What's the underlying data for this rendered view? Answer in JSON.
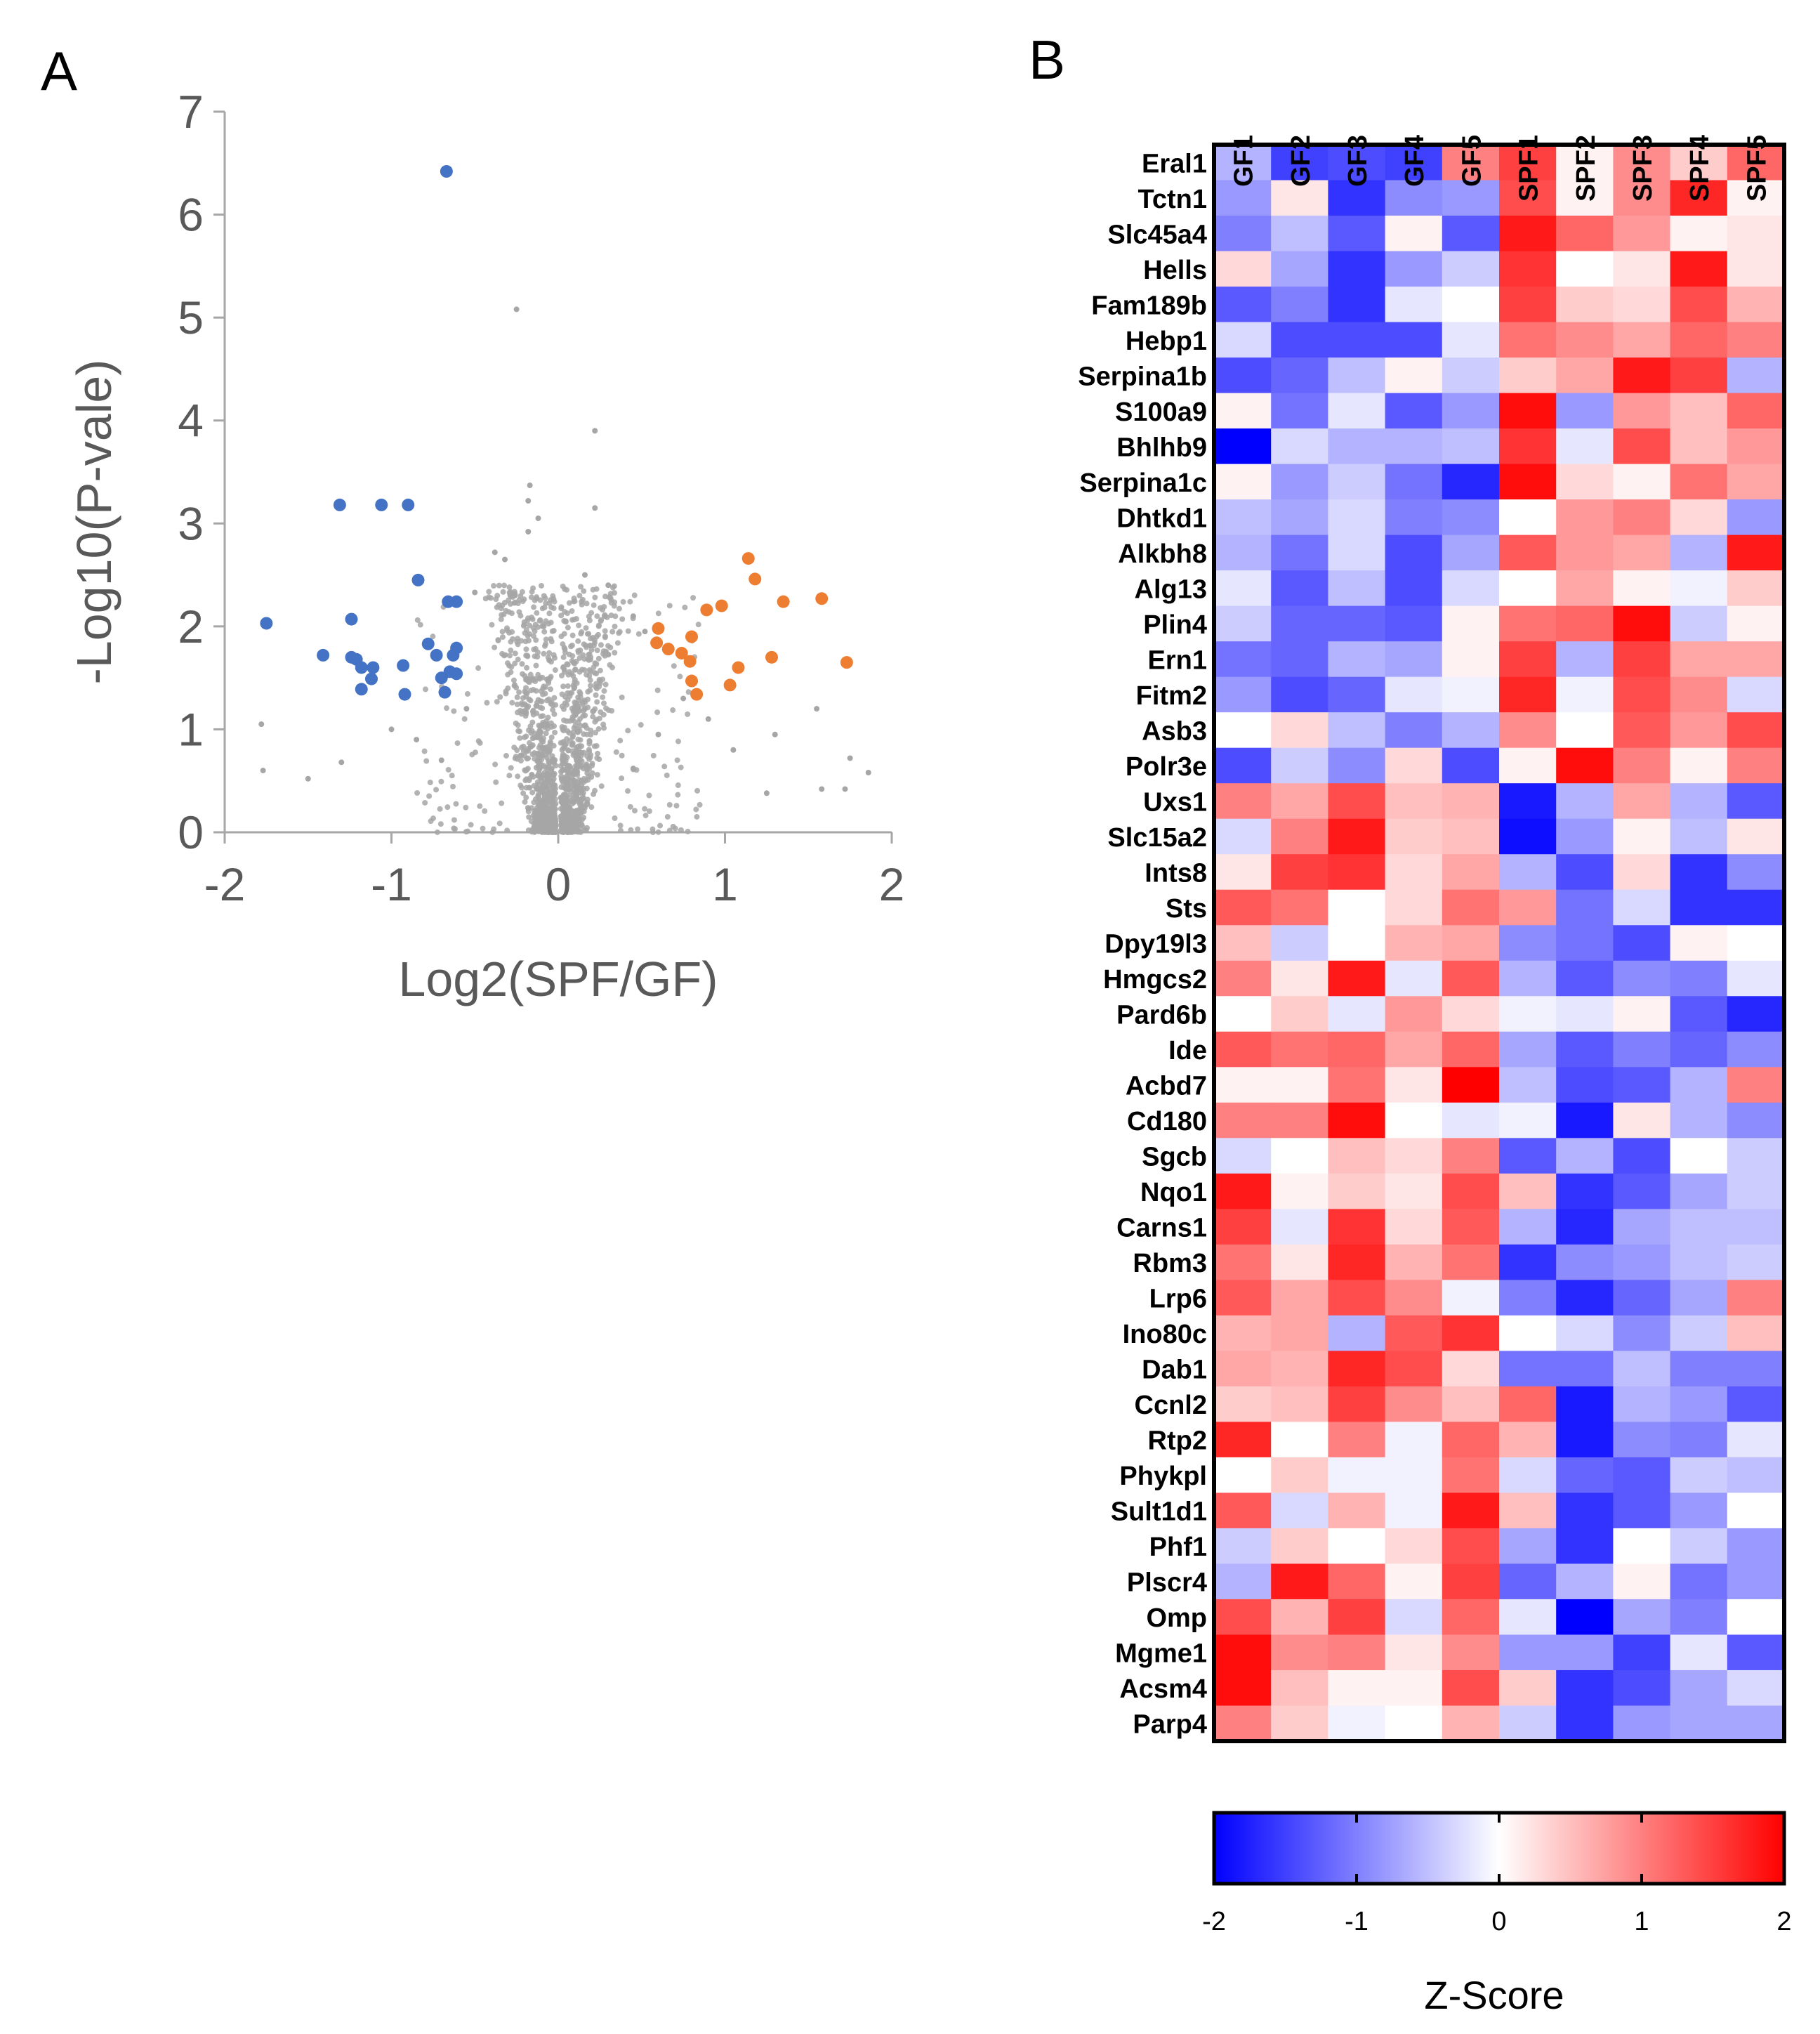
{
  "panels": {
    "left_letter": "A",
    "right_letter": "B"
  },
  "colors": {
    "background_points": "#a6a6a6",
    "down_regulated": "#4472c4",
    "up_regulated": "#ed7d31",
    "axis": "#a6a6a6",
    "text": "#595959",
    "heat_low": "#0000ff",
    "heat_mid": "#ffffff",
    "heat_high": "#ff0000"
  },
  "chart_data": [
    {
      "type": "scatter",
      "name": "volcano",
      "title": "",
      "xlabel": "Log2(SPF/GF)",
      "ylabel": "-Log10(P-vale)",
      "xlim": [
        -2,
        2
      ],
      "ylim": [
        0,
        7
      ],
      "xticks": [
        "-2",
        "-1",
        "0",
        "1",
        "2"
      ],
      "yticks": [
        "0",
        "1",
        "2",
        "3",
        "4",
        "5",
        "6",
        "7"
      ],
      "series": [
        {
          "name": "down",
          "color": "#4472c4",
          "points": [
            [
              -0.67,
              6.42
            ],
            [
              -1.31,
              3.18
            ],
            [
              -1.06,
              3.18
            ],
            [
              -0.9,
              3.18
            ],
            [
              -0.84,
              2.45
            ],
            [
              -0.66,
              2.24
            ],
            [
              -0.61,
              2.24
            ],
            [
              -1.24,
              2.07
            ],
            [
              -1.75,
              2.03
            ],
            [
              -0.78,
              1.83
            ],
            [
              -0.61,
              1.79
            ],
            [
              -1.41,
              1.72
            ],
            [
              -1.24,
              1.7
            ],
            [
              -1.21,
              1.68
            ],
            [
              -0.73,
              1.72
            ],
            [
              -0.63,
              1.72
            ],
            [
              -1.18,
              1.6
            ],
            [
              -1.11,
              1.6
            ],
            [
              -0.93,
              1.62
            ],
            [
              -0.65,
              1.56
            ],
            [
              -0.61,
              1.54
            ],
            [
              -0.7,
              1.5
            ],
            [
              -1.12,
              1.49
            ],
            [
              -1.18,
              1.39
            ],
            [
              -0.92,
              1.34
            ],
            [
              -0.68,
              1.36
            ]
          ]
        },
        {
          "name": "up",
          "color": "#ed7d31",
          "points": [
            [
              1.14,
              2.66
            ],
            [
              1.18,
              2.46
            ],
            [
              1.58,
              2.27
            ],
            [
              1.35,
              2.24
            ],
            [
              0.98,
              2.2
            ],
            [
              0.89,
              2.16
            ],
            [
              0.6,
              1.98
            ],
            [
              0.8,
              1.9
            ],
            [
              0.59,
              1.84
            ],
            [
              0.66,
              1.78
            ],
            [
              0.74,
              1.74
            ],
            [
              1.28,
              1.7
            ],
            [
              1.73,
              1.65
            ],
            [
              0.79,
              1.66
            ],
            [
              1.08,
              1.6
            ],
            [
              0.8,
              1.47
            ],
            [
              1.03,
              1.43
            ],
            [
              0.83,
              1.34
            ]
          ]
        },
        {
          "name": "background",
          "color": "#a6a6a6",
          "points": [
            [
              -0.25,
              5.08
            ],
            [
              0.22,
              3.9
            ],
            [
              -0.17,
              3.37
            ],
            [
              -0.18,
              3.22
            ],
            [
              0.22,
              3.15
            ],
            [
              -0.12,
              3.05
            ],
            [
              -0.18,
              2.92
            ],
            [
              -0.38,
              2.72
            ],
            [
              -0.32,
              2.65
            ],
            [
              0.16,
              2.5
            ],
            [
              0.3,
              2.4
            ],
            [
              -0.5,
              2.33
            ],
            [
              -0.26,
              2.3
            ],
            [
              0.45,
              2.1
            ],
            [
              0.52,
              1.95
            ],
            [
              -1.78,
              1.05
            ],
            [
              -1.77,
              0.6
            ],
            [
              -1.5,
              0.52
            ],
            [
              -1.3,
              0.68
            ],
            [
              1.55,
              1.2
            ],
            [
              1.75,
              0.72
            ],
            [
              1.86,
              0.58
            ],
            [
              1.72,
              0.42
            ],
            [
              1.58,
              0.42
            ],
            [
              1.25,
              0.38
            ],
            [
              1.05,
              0.8
            ],
            [
              0.9,
              1.1
            ],
            [
              -1.0,
              1.0
            ],
            [
              -0.85,
              0.9
            ],
            [
              0.75,
              1.3
            ],
            [
              -0.55,
              1.2
            ],
            [
              0.6,
              0.95
            ],
            [
              -0.7,
              0.7
            ],
            [
              0.45,
              0.62
            ],
            [
              1.3,
              0.95
            ]
          ]
        }
      ]
    },
    {
      "type": "heatmap",
      "name": "z-score heatmap",
      "columns": [
        "GF1",
        "GF2",
        "GF3",
        "GF4",
        "GF5",
        "SPF1",
        "SPF2",
        "SPF3",
        "SPF4",
        "SPF5"
      ],
      "rows": [
        "Eral1",
        "Tctn1",
        "Slc45a4",
        "Hells",
        "Fam189b",
        "Hebp1",
        "Serpina1b",
        "S100a9",
        "Bhlhb9",
        "Serpina1c",
        "Dhtkd1",
        "Alkbh8",
        "Alg13",
        "Plin4",
        "Ern1",
        "Fitm2",
        "Asb3",
        "Polr3e",
        "Uxs1",
        "Slc15a2",
        "Ints8",
        "Sts",
        "Dpy19l3",
        "Hmgcs2",
        "Pard6b",
        "Ide",
        "Acbd7",
        "Cd180",
        "Sgcb",
        "Nqo1",
        "Carns1",
        "Rbm3",
        "Lrp6",
        "Ino80c",
        "Dab1",
        "Ccnl2",
        "Rtp2",
        "Phykpl",
        "Sult1d1",
        "Phf1",
        "Plscr4",
        "Omp",
        "Mgme1",
        "Acsm4",
        "Parp4"
      ],
      "values": [
        [
          -0.6,
          -1.5,
          -1.4,
          -1.5,
          1.0,
          1.5,
          0.1,
          0.9,
          0.4,
          1.2
        ],
        [
          -0.8,
          0.2,
          -1.6,
          -0.9,
          -0.8,
          1.4,
          0.1,
          0.9,
          1.7,
          0.1
        ],
        [
          -1.0,
          -0.5,
          -1.3,
          0.1,
          -1.3,
          1.8,
          1.2,
          0.8,
          0.1,
          0.2
        ],
        [
          0.3,
          -0.7,
          -1.6,
          -0.8,
          -0.4,
          1.6,
          0.0,
          0.2,
          1.8,
          0.2
        ],
        [
          -1.3,
          -1.0,
          -1.6,
          -0.2,
          0.0,
          1.5,
          0.4,
          0.3,
          1.4,
          0.6
        ],
        [
          -0.3,
          -1.4,
          -1.4,
          -1.4,
          -0.2,
          1.1,
          0.9,
          0.7,
          1.2,
          1.0
        ],
        [
          -1.4,
          -1.2,
          -0.5,
          0.1,
          -0.4,
          0.4,
          0.7,
          1.8,
          1.5,
          -0.6
        ],
        [
          0.1,
          -1.1,
          -0.2,
          -1.3,
          -0.8,
          1.9,
          -0.8,
          0.8,
          0.5,
          1.2
        ],
        [
          -2.0,
          -0.3,
          -0.6,
          -0.6,
          -0.5,
          1.6,
          -0.2,
          1.4,
          0.5,
          0.8
        ],
        [
          0.1,
          -0.8,
          -0.4,
          -1.1,
          -1.7,
          1.9,
          0.3,
          0.1,
          1.1,
          0.7
        ],
        [
          -0.5,
          -0.7,
          -0.3,
          -1.0,
          -0.9,
          0.0,
          0.8,
          1.0,
          0.3,
          -0.8
        ],
        [
          -0.6,
          -1.1,
          -0.3,
          -1.4,
          -0.7,
          1.3,
          0.8,
          0.7,
          -0.6,
          1.8
        ],
        [
          -0.2,
          -1.3,
          -0.5,
          -1.4,
          -0.3,
          0.0,
          0.7,
          0.1,
          -0.1,
          0.4
        ],
        [
          -0.4,
          -1.2,
          -1.2,
          -1.3,
          0.1,
          1.1,
          1.2,
          1.9,
          -0.4,
          0.1
        ],
        [
          -1.1,
          -1.2,
          -0.6,
          -0.7,
          0.1,
          1.5,
          -0.6,
          1.5,
          0.7,
          0.7
        ],
        [
          -0.8,
          -1.4,
          -1.2,
          -0.2,
          -0.1,
          1.7,
          -0.1,
          1.4,
          0.9,
          -0.3
        ],
        [
          0.0,
          0.3,
          -0.5,
          -1.0,
          -0.6,
          0.9,
          0.0,
          1.3,
          0.8,
          1.4
        ],
        [
          -1.4,
          -0.4,
          -0.9,
          0.3,
          -1.4,
          0.1,
          1.9,
          1.0,
          0.1,
          1.0
        ],
        [
          1.0,
          0.7,
          1.4,
          0.5,
          0.6,
          -1.8,
          -0.6,
          0.7,
          -0.6,
          -1.3
        ],
        [
          -0.3,
          1.0,
          1.8,
          0.4,
          0.5,
          -1.9,
          -0.8,
          0.1,
          -0.5,
          0.2
        ],
        [
          0.2,
          1.5,
          1.6,
          0.3,
          0.7,
          -0.6,
          -1.4,
          0.3,
          -1.6,
          -0.9
        ],
        [
          1.3,
          1.1,
          0.0,
          0.3,
          1.1,
          0.8,
          -1.1,
          -0.3,
          -1.6,
          -1.6
        ],
        [
          0.5,
          -0.4,
          0.0,
          0.6,
          0.7,
          -0.9,
          -1.1,
          -1.4,
          0.1,
          0.0
        ],
        [
          1.0,
          0.2,
          1.8,
          -0.2,
          1.3,
          -0.6,
          -1.3,
          -0.9,
          -1.0,
          -0.2
        ],
        [
          0.0,
          0.4,
          -0.2,
          0.8,
          0.3,
          -0.1,
          -0.2,
          0.1,
          -1.3,
          -1.7
        ],
        [
          1.3,
          1.1,
          1.2,
          0.7,
          1.2,
          -0.7,
          -1.3,
          -1.0,
          -1.2,
          -0.9
        ],
        [
          0.1,
          0.1,
          1.1,
          0.2,
          2.0,
          -0.5,
          -1.4,
          -1.3,
          -0.6,
          1.0
        ],
        [
          1.0,
          1.0,
          1.9,
          0.0,
          -0.2,
          -0.1,
          -1.8,
          0.2,
          -0.6,
          -0.9
        ],
        [
          -0.3,
          0.0,
          0.5,
          0.3,
          1.0,
          -1.3,
          -0.6,
          -1.4,
          0.0,
          -0.4
        ],
        [
          1.8,
          0.1,
          0.4,
          0.2,
          1.4,
          0.5,
          -1.6,
          -1.3,
          -0.7,
          -0.4
        ],
        [
          1.5,
          -0.2,
          1.6,
          0.3,
          1.3,
          -0.6,
          -1.7,
          -0.7,
          -0.5,
          -0.5
        ],
        [
          1.1,
          0.2,
          1.7,
          0.6,
          1.1,
          -1.6,
          -0.9,
          -0.8,
          -0.5,
          -0.4
        ],
        [
          1.3,
          0.7,
          1.4,
          0.9,
          -0.1,
          -1.0,
          -1.7,
          -1.2,
          -0.7,
          1.0
        ],
        [
          0.6,
          0.7,
          -0.6,
          1.3,
          1.6,
          0.0,
          -0.3,
          -0.9,
          -0.4,
          0.5
        ],
        [
          0.7,
          0.6,
          1.7,
          1.4,
          0.3,
          -1.1,
          -1.1,
          -0.5,
          -1.0,
          -1.0
        ],
        [
          0.4,
          0.5,
          1.5,
          0.9,
          0.5,
          1.2,
          -1.8,
          -0.6,
          -0.8,
          -1.3
        ],
        [
          1.7,
          0.0,
          1.0,
          -0.1,
          1.2,
          0.6,
          -1.8,
          -0.9,
          -1.0,
          -0.2
        ],
        [
          0.0,
          0.4,
          -0.1,
          -0.1,
          1.1,
          -0.3,
          -1.2,
          -1.3,
          -0.4,
          -0.5
        ],
        [
          1.3,
          -0.3,
          0.6,
          -0.1,
          1.8,
          0.5,
          -1.6,
          -1.3,
          -0.8,
          0.0
        ],
        [
          -0.4,
          0.4,
          0.0,
          0.3,
          1.4,
          -0.7,
          -1.6,
          0.0,
          -0.4,
          -0.8
        ],
        [
          -0.6,
          1.8,
          1.2,
          0.1,
          1.5,
          -1.2,
          -0.6,
          0.1,
          -1.1,
          -0.8
        ],
        [
          1.4,
          0.6,
          1.5,
          -0.3,
          1.2,
          -0.2,
          -2.0,
          -0.7,
          -1.0,
          0.0
        ],
        [
          1.9,
          0.9,
          1.0,
          0.2,
          0.9,
          -0.8,
          -0.8,
          -1.5,
          -0.2,
          -1.3
        ],
        [
          1.9,
          0.5,
          0.1,
          0.1,
          1.4,
          0.4,
          -1.6,
          -1.4,
          -0.7,
          -0.3
        ],
        [
          1.0,
          0.4,
          -0.1,
          0.0,
          0.6,
          -0.4,
          -1.6,
          -0.8,
          -0.7,
          -0.7
        ]
      ],
      "colorbar": {
        "title": "Z-Score",
        "range": [
          -2,
          2
        ],
        "ticks": [
          "-2",
          "-1",
          "0",
          "1",
          "2"
        ]
      }
    }
  ]
}
